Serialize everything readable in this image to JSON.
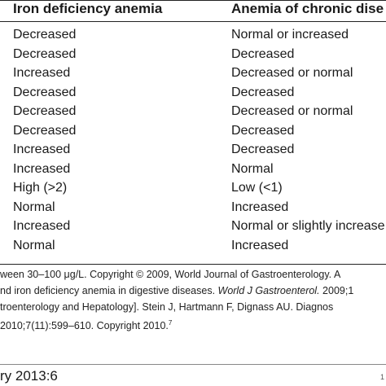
{
  "table": {
    "headers": [
      "Iron deficiency anemia",
      "Anemia of chronic dise"
    ],
    "rows": [
      [
        "Decreased",
        "Normal or increased"
      ],
      [
        "Decreased",
        "Decreased"
      ],
      [
        "Increased",
        "Decreased or normal"
      ],
      [
        "Decreased",
        "Decreased"
      ],
      [
        "Decreased",
        "Decreased or normal"
      ],
      [
        "Decreased",
        "Decreased"
      ],
      [
        "Increased",
        "Decreased"
      ],
      [
        "Increased",
        "Normal"
      ],
      [
        "High (>2)",
        "Low (<1)"
      ],
      [
        "Normal",
        "Increased"
      ],
      [
        "Increased",
        "Normal or slightly increase"
      ],
      [
        "Normal",
        "Increased"
      ]
    ]
  },
  "footnote": {
    "line1": "ween 30–100 μg/L. Copyright © 2009, World Journal of Gastroenterology. A",
    "line2a": "nd iron deficiency anemia in digestive diseases. ",
    "line2b": "World J Gastroenterol.",
    "line2c": " 2009;1",
    "line3": "troenterology and Hepatology]. Stein J, Hartmann F, Dignass AU. Diagnos",
    "line4": " 2010;7(11):599–610. Copyright 2010.",
    "line4_sup": "7"
  },
  "footer": {
    "text": "ry 2013:6",
    "right": "1"
  }
}
